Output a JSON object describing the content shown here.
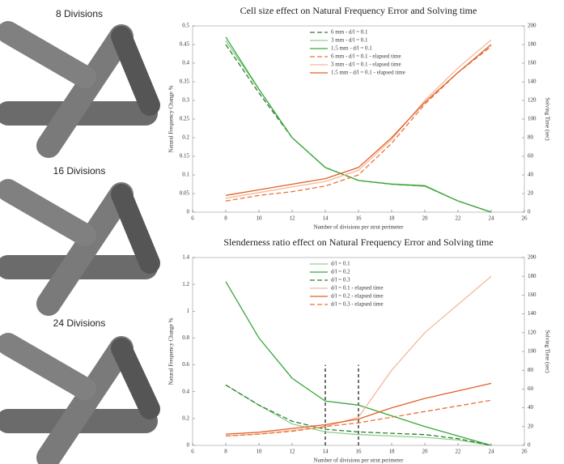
{
  "panels": [
    {
      "label": "8 Divisions"
    },
    {
      "label": "16 Divisions"
    },
    {
      "label": "24 Divisions"
    }
  ],
  "chart_data": [
    {
      "type": "line",
      "title": "Cell size effect on Natural Frequency Error and Solving time",
      "xlabel": "Number of divisions per strut perimeter",
      "ylabel": "Natural Frequency Change %",
      "y2label": "Solving Time (sec)",
      "x": [
        8,
        10,
        12,
        14,
        16,
        18,
        20,
        22,
        24
      ],
      "xlim": [
        6,
        26
      ],
      "xticks": [
        6,
        8,
        10,
        12,
        14,
        16,
        18,
        20,
        22,
        24,
        26
      ],
      "ylim": [
        0,
        0.5
      ],
      "yticks": [
        0,
        0.05,
        0.1,
        0.15,
        0.2,
        0.25,
        0.3,
        0.35,
        0.4,
        0.45,
        0.5
      ],
      "y2lim": [
        0,
        200
      ],
      "y2ticks": [
        0,
        20,
        40,
        60,
        80,
        100,
        120,
        140,
        160,
        180,
        200
      ],
      "legend": "top",
      "series": [
        {
          "name": "6 mm - d/l = 0.1",
          "color": "#2e7d32",
          "dashed": true,
          "values": [
            0.45,
            0.32,
            0.2,
            0.12,
            0.085,
            0.075,
            0.07,
            0.03,
            0
          ]
        },
        {
          "name": "3 mm - d/l = 0.1",
          "color": "#8fd18f",
          "dashed": false,
          "values": [
            0.46,
            0.33,
            0.2,
            0.12,
            0.085,
            0.076,
            0.072,
            0.03,
            0
          ]
        },
        {
          "name": "1.5 mm - d/l = 0.1",
          "color": "#3aa63a",
          "dashed": false,
          "values": [
            0.47,
            0.33,
            0.2,
            0.12,
            0.085,
            0.075,
            0.07,
            0.03,
            0
          ]
        },
        {
          "name": "6 mm - d/l = 0.1 - elapsed time",
          "color": "#e8743b",
          "dashed": true,
          "axis": "y2",
          "values": [
            12,
            18,
            22,
            28,
            40,
            74,
            116,
            150,
            178
          ]
        },
        {
          "name": "3 mm - d/l = 0.1 - elapsed time",
          "color": "#f7b89a",
          "dashed": false,
          "axis": "y2",
          "values": [
            15,
            21,
            27,
            33,
            45,
            78,
            120,
            155,
            185
          ]
        },
        {
          "name": "1.5 mm - d/l = 0.1 - elapsed time",
          "color": "#e0602a",
          "dashed": false,
          "axis": "y2",
          "values": [
            18,
            24,
            30,
            36,
            48,
            80,
            118,
            150,
            180
          ]
        }
      ]
    },
    {
      "type": "line",
      "title": "Slenderness ratio effect on Natural Frequency Error and Solving time",
      "xlabel": "Number of divisions per strut perimeter",
      "ylabel": "Natural Frequency Change %",
      "y2label": "Solving Time (sec)",
      "x": [
        8,
        10,
        12,
        14,
        16,
        18,
        20,
        22,
        24
      ],
      "xlim": [
        6,
        26
      ],
      "xticks": [
        6,
        8,
        10,
        12,
        14,
        16,
        18,
        20,
        22,
        24,
        26
      ],
      "ylim": [
        0,
        1.4
      ],
      "yticks": [
        0,
        0.2,
        0.4,
        0.6,
        0.8,
        1,
        1.2,
        1.4
      ],
      "y2lim": [
        0,
        200
      ],
      "y2ticks": [
        0,
        20,
        40,
        60,
        80,
        100,
        120,
        140,
        160,
        180,
        200
      ],
      "legend": "top",
      "vlines": [
        {
          "x": 14,
          "y": 0.6
        },
        {
          "x": 16,
          "y": 0.6
        }
      ],
      "series": [
        {
          "name": "d/l = 0.1",
          "color": "#8fd18f",
          "dashed": false,
          "values": [
            0.45,
            0.3,
            0.16,
            0.1,
            0.08,
            0.07,
            0.06,
            0.04,
            0
          ]
        },
        {
          "name": "d/l = 0.2",
          "color": "#3aa63a",
          "dashed": false,
          "values": [
            1.22,
            0.8,
            0.5,
            0.33,
            0.3,
            0.22,
            0.14,
            0.07,
            0
          ]
        },
        {
          "name": "d/l = 0.3",
          "color": "#2e7d32",
          "dashed": true,
          "values": [
            0.45,
            0.3,
            0.18,
            0.12,
            0.1,
            0.09,
            0.08,
            0.05,
            0
          ]
        },
        {
          "name": "d/l = 0.1 - elapsed time",
          "color": "#f7b89a",
          "dashed": false,
          "axis": "y2",
          "values": [
            10,
            12,
            16,
            20,
            30,
            80,
            120,
            150,
            180
          ]
        },
        {
          "name": "d/l = 0.2 - elapsed time",
          "color": "#e0602a",
          "dashed": false,
          "axis": "y2",
          "values": [
            12,
            14,
            18,
            22,
            28,
            40,
            50,
            58,
            66
          ]
        },
        {
          "name": "d/l = 0.3 - elapsed time",
          "color": "#e8743b",
          "dashed": true,
          "axis": "y2",
          "values": [
            10,
            12,
            15,
            20,
            24,
            30,
            36,
            42,
            48
          ]
        }
      ]
    }
  ]
}
